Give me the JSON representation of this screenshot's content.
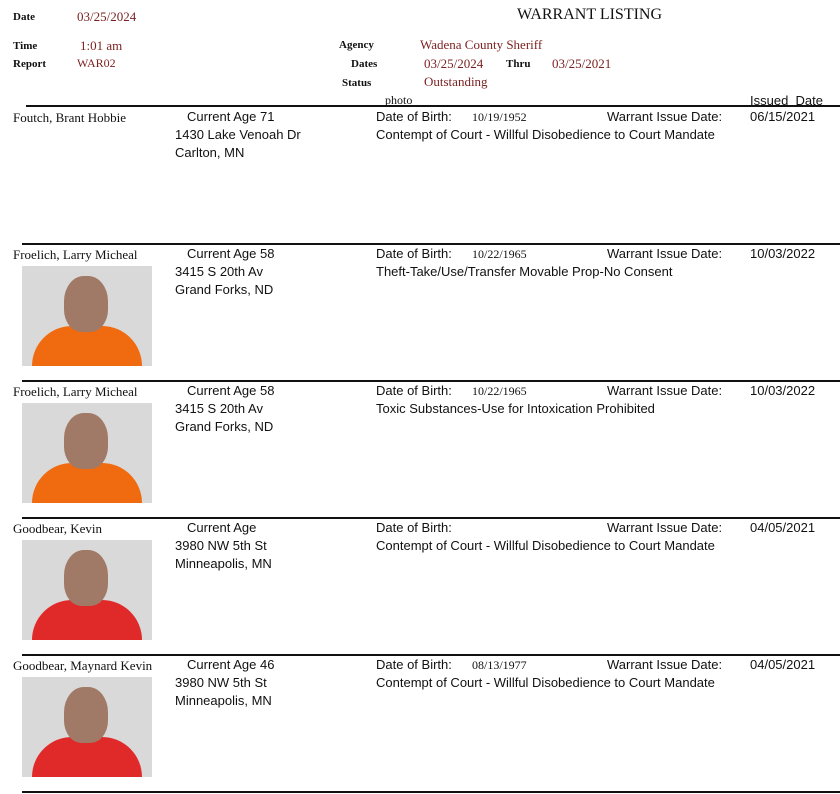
{
  "header": {
    "date_label": "Date",
    "date": "03/25/2024",
    "title": "WARRANT LISTING",
    "time_label": "Time",
    "time": "1:01 am",
    "report_label": "Report",
    "report": "WAR02",
    "agency_label": "Agency",
    "agency": "Wadena County Sheriff",
    "dates_label": "Dates",
    "date_from": "03/25/2024",
    "thru_label": "Thru",
    "date_to": "03/25/2021",
    "status_label": "Status",
    "status": "Outstanding"
  },
  "columns": {
    "photo": "photo",
    "issued_date": "Issued  Date"
  },
  "labels": {
    "age": "Current Age",
    "dob": "Date of Birth:",
    "warrant_issue": "Warrant Issue Date:"
  },
  "records": [
    {
      "name": "Foutch, Brant Hobbie",
      "age": "Current Age 71",
      "addr1": "1430  Lake Venoah Dr",
      "addr2": "Carlton, MN",
      "dob": "10/19/1952",
      "issue_date": "06/15/2021",
      "offense": "Contempt of Court - Willful Disobedience to Court Mandate",
      "photo": false
    },
    {
      "name": "Froelich, Larry Micheal",
      "age": "Current Age 58",
      "addr1": "3415 S 20th Av",
      "addr2": "Grand Forks, ND",
      "dob": "10/22/1965",
      "issue_date": "10/03/2022",
      "offense": "Theft-Take/Use/Transfer Movable Prop-No Consent",
      "photo": true,
      "shirt_color": "#f06a10"
    },
    {
      "name": "Froelich, Larry Micheal",
      "age": "Current Age 58",
      "addr1": "3415 S 20th Av",
      "addr2": "Grand Forks, ND",
      "dob": "10/22/1965",
      "issue_date": "10/03/2022",
      "offense": "Toxic Substances-Use for Intoxication Prohibited",
      "photo": true,
      "shirt_color": "#f06a10"
    },
    {
      "name": "Goodbear, Kevin",
      "age": "Current Age",
      "addr1": "3980 NW 5th St",
      "addr2": "Minneapolis, MN",
      "dob": "",
      "issue_date": "04/05/2021",
      "offense": "Contempt of Court - Willful Disobedience to Court Mandate",
      "photo": true,
      "shirt_color": "#e02a2a"
    },
    {
      "name": "Goodbear, Maynard Kevin",
      "age": "Current Age 46",
      "addr1": "3980 NW 5th St",
      "addr2": "Minneapolis, MN",
      "dob": "08/13/1977",
      "issue_date": "04/05/2021",
      "offense": "Contempt of Court - Willful Disobedience to Court Mandate",
      "photo": true,
      "shirt_color": "#e02a2a"
    }
  ]
}
